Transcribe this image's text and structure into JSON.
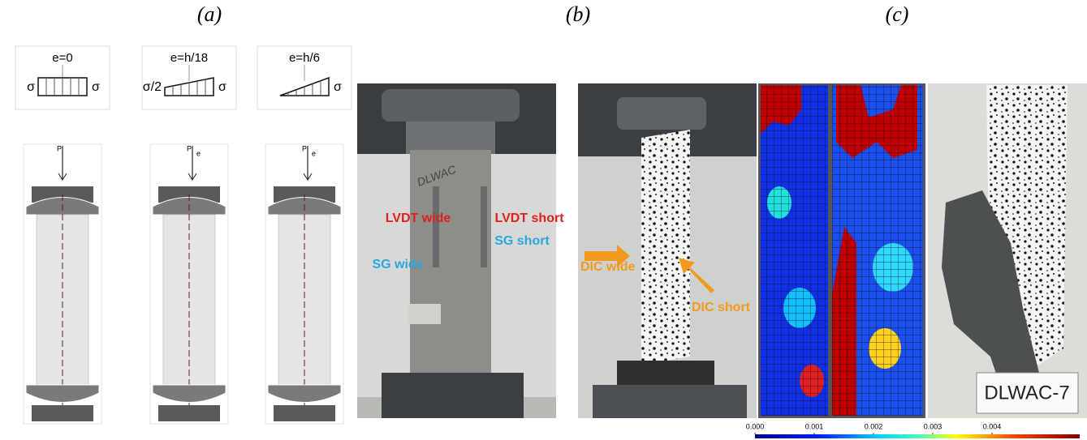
{
  "panel_labels": [
    "(a)",
    "(b)",
    "(c)"
  ],
  "panel_a": {
    "diagrams": [
      {
        "eccentricity": "e=0",
        "stress_left": "σ",
        "stress_right": "σ",
        "load": "P"
      },
      {
        "eccentricity": "e=h/18",
        "stress_left": "σ/2",
        "stress_right": "σ",
        "load": "P",
        "offset": "e"
      },
      {
        "eccentricity": "e=h/6",
        "stress_right": "σ",
        "load": "P",
        "offset": "e"
      }
    ]
  },
  "panel_b": {
    "specimen_mark": "DLWAC",
    "labels": {
      "lvdt_wide": "LVDT wide",
      "lvdt_short": "LVDT short",
      "sg_short": "SG short",
      "sg_wide": "SG wide",
      "dic_wide": "DIC wide",
      "dic_short": "DIC short"
    }
  },
  "panel_c": {
    "specimen_label": "DLWAC-7",
    "colorbar": {
      "ticks": [
        {
          "value": 0,
          "label": "0.000"
        },
        {
          "value": 0.001,
          "label": "0.001"
        },
        {
          "value": 0.002,
          "label": "0.002"
        },
        {
          "value": 0.003,
          "label": "0.003"
        },
        {
          "value": 0.004,
          "label": "0.004"
        }
      ]
    }
  }
}
